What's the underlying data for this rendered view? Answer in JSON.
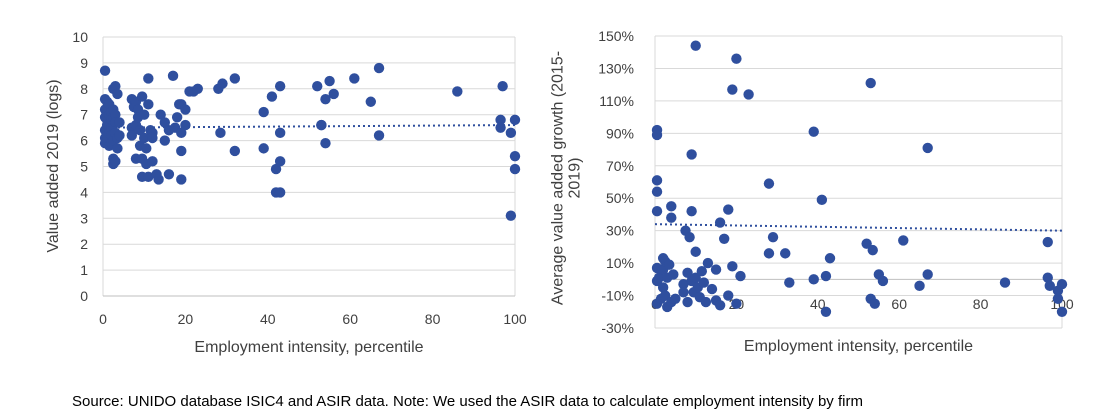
{
  "chart_data": [
    {
      "type": "scatter",
      "title": "",
      "xlabel": "Employment intensity, percentile",
      "ylabel": "Value added 2019 (logs)",
      "xlim": [
        0,
        100
      ],
      "ylim": [
        0,
        10
      ],
      "x_ticks": [
        "0",
        "20",
        "40",
        "60",
        "80",
        "100"
      ],
      "y_ticks": [
        "0",
        "1",
        "2",
        "3",
        "4",
        "5",
        "6",
        "7",
        "8",
        "9",
        "10"
      ],
      "grid": "horizontal",
      "legend": "none",
      "marker_color": "#2F4F9E",
      "trendline": {
        "type": "linear",
        "style": "dotted",
        "start": [
          0,
          6.5
        ],
        "end": [
          100,
          6.6
        ]
      },
      "points": [
        [
          0.5,
          8.7
        ],
        [
          0.5,
          7.6
        ],
        [
          0.5,
          7.2
        ],
        [
          0.5,
          6.9
        ],
        [
          0.5,
          6.4
        ],
        [
          0.5,
          6.1
        ],
        [
          0.5,
          5.9
        ],
        [
          1,
          7.5
        ],
        [
          1,
          6.8
        ],
        [
          1,
          6.6
        ],
        [
          1,
          6.2
        ],
        [
          1,
          6.0
        ],
        [
          1.5,
          7.4
        ],
        [
          1.5,
          7.0
        ],
        [
          1.5,
          6.6
        ],
        [
          1.5,
          6.3
        ],
        [
          1.5,
          5.8
        ],
        [
          2,
          7.1
        ],
        [
          2,
          6.8
        ],
        [
          2,
          6.5
        ],
        [
          2,
          6.2
        ],
        [
          2,
          5.9
        ],
        [
          2.5,
          8.0
        ],
        [
          2.5,
          7.2
        ],
        [
          2.5,
          6.9
        ],
        [
          2.5,
          6.6
        ],
        [
          2.5,
          6.0
        ],
        [
          2.5,
          5.3
        ],
        [
          2.5,
          5.1
        ],
        [
          3,
          8.1
        ],
        [
          3,
          7.0
        ],
        [
          3,
          6.7
        ],
        [
          3,
          6.3
        ],
        [
          3,
          5.2
        ],
        [
          3.5,
          7.8
        ],
        [
          3.5,
          6.1
        ],
        [
          3.5,
          5.7
        ],
        [
          4,
          6.7
        ],
        [
          4,
          6.2
        ],
        [
          7,
          7.6
        ],
        [
          7,
          6.5
        ],
        [
          7,
          6.2
        ],
        [
          7.5,
          7.3
        ],
        [
          8,
          7.5
        ],
        [
          8,
          6.6
        ],
        [
          8,
          5.3
        ],
        [
          8.5,
          7.2
        ],
        [
          8.5,
          6.9
        ],
        [
          9,
          6.4
        ],
        [
          9,
          5.8
        ],
        [
          9.5,
          7.7
        ],
        [
          9.5,
          5.3
        ],
        [
          9.5,
          4.6
        ],
        [
          10,
          7.0
        ],
        [
          10,
          6.1
        ],
        [
          10.5,
          5.7
        ],
        [
          10.5,
          5.1
        ],
        [
          11,
          8.4
        ],
        [
          11,
          7.4
        ],
        [
          11,
          4.6
        ],
        [
          11.5,
          6.4
        ],
        [
          12,
          6.3
        ],
        [
          12,
          6.1
        ],
        [
          12,
          5.2
        ],
        [
          13,
          4.7
        ],
        [
          13.5,
          4.5
        ],
        [
          14,
          7.0
        ],
        [
          15,
          6.7
        ],
        [
          15,
          6.0
        ],
        [
          16,
          6.4
        ],
        [
          16,
          4.7
        ],
        [
          17,
          8.5
        ],
        [
          17.5,
          6.5
        ],
        [
          18,
          6.9
        ],
        [
          18.5,
          7.4
        ],
        [
          19,
          7.4
        ],
        [
          19,
          6.3
        ],
        [
          19,
          5.6
        ],
        [
          19,
          4.5
        ],
        [
          20,
          7.2
        ],
        [
          20,
          6.6
        ],
        [
          21,
          7.9
        ],
        [
          22,
          7.9
        ],
        [
          23,
          8.0
        ],
        [
          28,
          8.0
        ],
        [
          28.5,
          6.3
        ],
        [
          29,
          8.2
        ],
        [
          32,
          8.4
        ],
        [
          32,
          5.6
        ],
        [
          39,
          7.1
        ],
        [
          39,
          5.7
        ],
        [
          41,
          7.7
        ],
        [
          42,
          4.9
        ],
        [
          42,
          4.0
        ],
        [
          43,
          8.1
        ],
        [
          43,
          6.3
        ],
        [
          43,
          5.2
        ],
        [
          43,
          4.0
        ],
        [
          52,
          8.1
        ],
        [
          53,
          6.6
        ],
        [
          53,
          6.6
        ],
        [
          54,
          7.6
        ],
        [
          54,
          5.9
        ],
        [
          55,
          8.3
        ],
        [
          56,
          7.8
        ],
        [
          61,
          8.4
        ],
        [
          65,
          7.5
        ],
        [
          67,
          8.8
        ],
        [
          67,
          6.2
        ],
        [
          86,
          7.9
        ],
        [
          96.5,
          6.8
        ],
        [
          96.5,
          6.5
        ],
        [
          97,
          8.1
        ],
        [
          99,
          6.3
        ],
        [
          99,
          3.1
        ],
        [
          100,
          6.8
        ],
        [
          100,
          5.4
        ],
        [
          100,
          4.9
        ]
      ]
    },
    {
      "type": "scatter",
      "title": "",
      "xlabel": "Employment intensity, percentile",
      "ylabel": "Average value added growth (2015-2019)",
      "ylabel_lines": [
        "Average value added growth (2015-",
        "2019)"
      ],
      "xlim": [
        0,
        100
      ],
      "ylim": [
        -30,
        150
      ],
      "x_ticks": [
        "0",
        "20",
        "40",
        "60",
        "80",
        "100"
      ],
      "y_ticks": [
        "-30%",
        "-10%",
        "10%",
        "30%",
        "50%",
        "70%",
        "90%",
        "110%",
        "130%",
        "150%"
      ],
      "grid": "horizontal",
      "legend": "none",
      "marker_color": "#2F4F9E",
      "trendline": {
        "type": "linear",
        "style": "dotted",
        "start": [
          0,
          34
        ],
        "end": [
          100,
          30
        ]
      },
      "points": [
        [
          0.5,
          92
        ],
        [
          0.5,
          89
        ],
        [
          0.5,
          61
        ],
        [
          0.5,
          54
        ],
        [
          0.5,
          42
        ],
        [
          0.5,
          7
        ],
        [
          0.5,
          -1
        ],
        [
          0.5,
          -15
        ],
        [
          1,
          1
        ],
        [
          1.5,
          -12
        ],
        [
          2,
          13
        ],
        [
          2,
          6
        ],
        [
          2,
          -5
        ],
        [
          2.5,
          11
        ],
        [
          2.5,
          -10
        ],
        [
          3,
          1
        ],
        [
          3,
          -17
        ],
        [
          3.5,
          9
        ],
        [
          4,
          45
        ],
        [
          4,
          38
        ],
        [
          4,
          -14
        ],
        [
          4.5,
          3
        ],
        [
          5,
          -12
        ],
        [
          7,
          -3
        ],
        [
          7,
          -8
        ],
        [
          7.5,
          30
        ],
        [
          8,
          4
        ],
        [
          8,
          -14
        ],
        [
          8.5,
          26
        ],
        [
          9,
          77
        ],
        [
          9,
          42
        ],
        [
          9,
          -1
        ],
        [
          9.5,
          -8
        ],
        [
          10,
          17
        ],
        [
          10,
          144
        ],
        [
          10,
          1
        ],
        [
          10.5,
          -5
        ],
        [
          11,
          -11
        ],
        [
          11.5,
          5
        ],
        [
          12,
          -2
        ],
        [
          12.5,
          -14
        ],
        [
          13,
          10
        ],
        [
          14,
          -6
        ],
        [
          15,
          6
        ],
        [
          15,
          -13
        ],
        [
          16,
          -16
        ],
        [
          16,
          35
        ],
        [
          17,
          25
        ],
        [
          18,
          43
        ],
        [
          18,
          -10
        ],
        [
          19,
          117
        ],
        [
          19,
          8
        ],
        [
          20,
          136
        ],
        [
          20,
          -15
        ],
        [
          21,
          2
        ],
        [
          23,
          114
        ],
        [
          28,
          16
        ],
        [
          28,
          59
        ],
        [
          29,
          26
        ],
        [
          32,
          16
        ],
        [
          33,
          -2
        ],
        [
          39,
          91
        ],
        [
          39,
          0
        ],
        [
          41,
          49
        ],
        [
          42,
          2
        ],
        [
          42,
          -20
        ],
        [
          43,
          13
        ],
        [
          52,
          22
        ],
        [
          53,
          -12
        ],
        [
          53,
          121
        ],
        [
          53.5,
          18
        ],
        [
          54,
          -15
        ],
        [
          55,
          3
        ],
        [
          56,
          -1
        ],
        [
          61,
          24
        ],
        [
          65,
          -4
        ],
        [
          67,
          81
        ],
        [
          67,
          3
        ],
        [
          86,
          -2
        ],
        [
          96.5,
          23
        ],
        [
          96.5,
          1
        ],
        [
          97,
          -4
        ],
        [
          99,
          -7
        ],
        [
          99,
          -12
        ],
        [
          100,
          -3
        ],
        [
          100,
          -20
        ]
      ]
    }
  ],
  "source_note": "Source: UNIDO database ISIC4 and ASIR data. Note: We used the ASIR data to calculate employment intensity by firm"
}
